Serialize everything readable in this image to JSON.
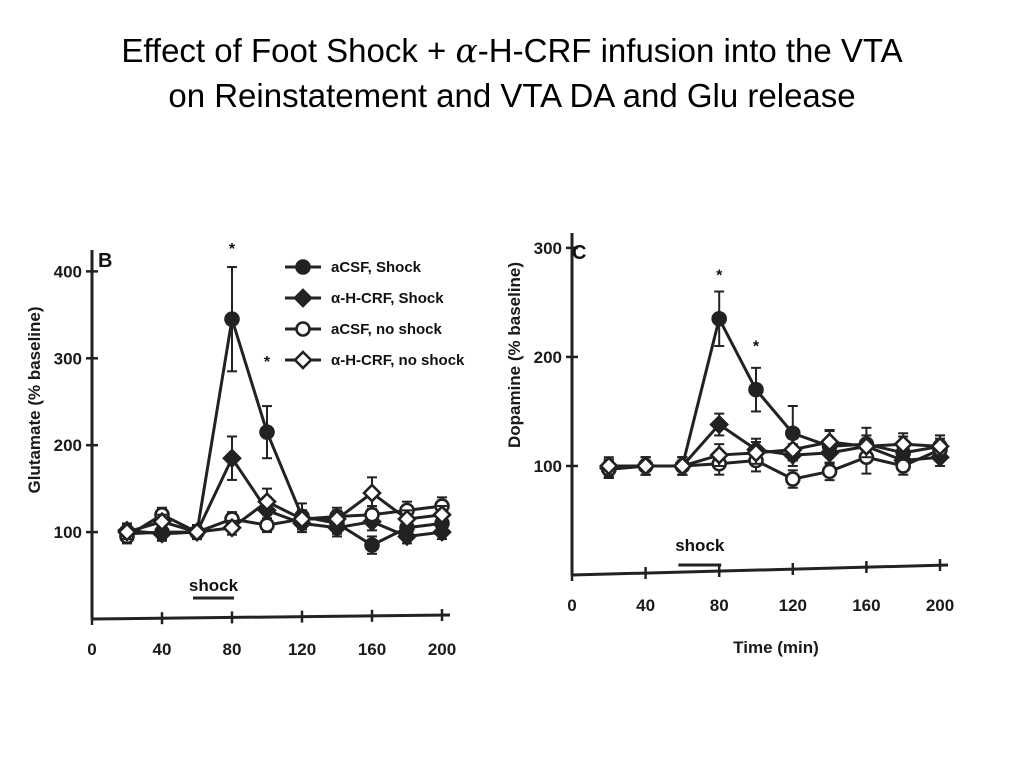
{
  "title": {
    "line1_before": "Effect of Foot Shock + ",
    "alpha": "α",
    "line1_after": "-H-CRF infusion into the VTA",
    "line2": "on Reinstatement and VTA DA and Glu release"
  },
  "legend": [
    "aCSF, Shock",
    "α-H-CRF, Shock",
    "aCSF, no shock",
    "α-H-CRF, no shock"
  ],
  "chart_data": [
    {
      "type": "line",
      "panel_label": "B",
      "ylabel": "Glutamate (% baseline)",
      "xlabel": "",
      "x_ticks": [
        "0",
        "40",
        "80",
        "120",
        "160",
        "200"
      ],
      "y_ticks": [
        "100",
        "200",
        "300",
        "400"
      ],
      "xlim": [
        0,
        200
      ],
      "ylim": [
        0,
        420
      ],
      "shock_label": "shock",
      "shock_interval": [
        60,
        80
      ],
      "significance": [
        {
          "x": 80,
          "y": 345,
          "label": "*"
        },
        {
          "x": 100,
          "y": 215,
          "label": "*"
        }
      ],
      "x": [
        20,
        40,
        60,
        80,
        100,
        120,
        140,
        160,
        180,
        200
      ],
      "series": [
        {
          "name": "aCSF, Shock",
          "marker": "filled-circle",
          "values": [
            98,
            100,
            100,
            345,
            215,
            118,
            110,
            85,
            105,
            110
          ],
          "errors": [
            8,
            8,
            8,
            60,
            30,
            15,
            12,
            10,
            10,
            10
          ]
        },
        {
          "name": "α-H-CRF, Shock",
          "marker": "filled-diamond",
          "values": [
            102,
            98,
            100,
            185,
            125,
            110,
            105,
            112,
            95,
            100
          ],
          "errors": [
            8,
            8,
            8,
            25,
            15,
            10,
            10,
            10,
            8,
            8
          ]
        },
        {
          "name": "aCSF, no shock",
          "marker": "open-circle",
          "values": [
            95,
            120,
            100,
            115,
            108,
            115,
            118,
            120,
            125,
            130
          ],
          "errors": [
            8,
            8,
            8,
            8,
            8,
            10,
            10,
            10,
            10,
            10
          ]
        },
        {
          "name": "α-H-CRF, no shock",
          "marker": "open-diamond",
          "values": [
            100,
            112,
            100,
            105,
            135,
            115,
            115,
            145,
            115,
            120
          ],
          "errors": [
            8,
            8,
            8,
            8,
            15,
            10,
            10,
            18,
            10,
            10
          ]
        }
      ]
    },
    {
      "type": "line",
      "panel_label": "C",
      "ylabel": "Dopamine (% baseline)",
      "xlabel": "Time (min)",
      "x_ticks": [
        "0",
        "40",
        "80",
        "120",
        "160",
        "200"
      ],
      "y_ticks": [
        "100",
        "200",
        "300"
      ],
      "xlim": [
        0,
        200
      ],
      "ylim": [
        0,
        310
      ],
      "shock_label": "shock",
      "shock_interval": [
        60,
        80
      ],
      "significance": [
        {
          "x": 80,
          "y": 235,
          "label": "*"
        },
        {
          "x": 100,
          "y": 170,
          "label": "*"
        }
      ],
      "x": [
        20,
        40,
        60,
        80,
        100,
        120,
        140,
        160,
        180,
        200
      ],
      "series": [
        {
          "name": "aCSF, Shock",
          "marker": "filled-circle",
          "values": [
            97,
            100,
            100,
            235,
            170,
            130,
            118,
            120,
            112,
            118
          ],
          "errors": [
            8,
            8,
            8,
            25,
            20,
            25,
            15,
            15,
            15,
            10
          ]
        },
        {
          "name": "α-H-CRF, Shock",
          "marker": "filled-diamond",
          "values": [
            98,
            100,
            100,
            138,
            115,
            110,
            112,
            118,
            105,
            108
          ],
          "errors": [
            8,
            8,
            8,
            10,
            10,
            10,
            10,
            10,
            8,
            8
          ]
        },
        {
          "name": "aCSF, no shock",
          "marker": "open-circle",
          "values": [
            97,
            100,
            100,
            102,
            105,
            88,
            95,
            108,
            100,
            115
          ],
          "errors": [
            8,
            8,
            8,
            10,
            10,
            8,
            8,
            15,
            8,
            10
          ]
        },
        {
          "name": "α-H-CRF, no shock",
          "marker": "open-diamond",
          "values": [
            100,
            100,
            100,
            110,
            112,
            115,
            122,
            118,
            120,
            118
          ],
          "errors": [
            8,
            8,
            8,
            10,
            10,
            10,
            10,
            10,
            10,
            10
          ]
        }
      ]
    }
  ]
}
